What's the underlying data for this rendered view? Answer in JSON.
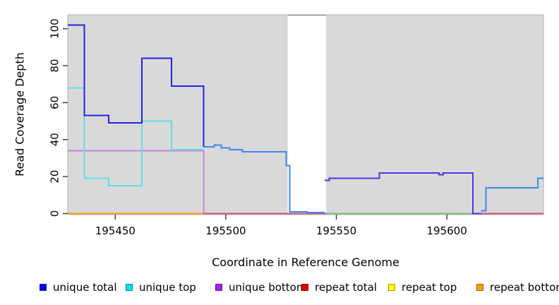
{
  "figure": {
    "background": "#ffffff",
    "plot_bg": "#d9d9d9",
    "tick_color": "#333333",
    "text_color": "#000000"
  },
  "chart_data": {
    "type": "line",
    "title": "",
    "xlabel": "Coordinate in Reference Genome",
    "ylabel": "Read Coverage Depth",
    "xlim": [
      195428.5,
      195643.7
    ],
    "ylim": [
      0,
      107.5
    ],
    "x_ticks": [
      195450,
      195500,
      195550,
      195600
    ],
    "y_ticks": [
      0,
      20,
      40,
      60,
      80,
      100
    ],
    "grid": false,
    "legend_position": "bottom",
    "plot_bg": "#d9d9d9",
    "plot_border": "#b3b3b3",
    "masked_region": {
      "x1": 195528.0,
      "x2": 195545.4,
      "color": "#ffffff",
      "top_line_color": "#8f8f8f"
    },
    "series": [
      {
        "name": "repeat-bottom-zero",
        "color": "#ff9d0a",
        "steps": [
          [
            195428.5,
            0
          ]
        ],
        "end": 195490
      },
      {
        "name": "zero-line-pink-left",
        "color": "#d5527a",
        "steps": [
          [
            195490,
            0
          ]
        ],
        "end": 195545.4
      },
      {
        "name": "zero-line-green",
        "color": "#7fbd81",
        "steps": [
          [
            195545.4,
            0
          ]
        ],
        "end": 195613
      },
      {
        "name": "zero-line-pink-right",
        "color": "#d5527a",
        "steps": [
          [
            195615.5,
            0
          ]
        ],
        "end": 195643.7
      },
      {
        "name": "unique-bottom",
        "color": "#c583dc",
        "steps": [
          [
            195428.5,
            34
          ]
        ],
        "end": 195490,
        "drop": 0
      },
      {
        "name": "unique-top",
        "color": "#62dde6",
        "steps": [
          [
            195428.5,
            68
          ],
          [
            195436,
            19
          ],
          [
            195447,
            15
          ],
          [
            195462,
            50
          ],
          [
            195475.5,
            34.5
          ]
        ],
        "end": 195490
      },
      {
        "name": "unique-total-left",
        "color": "#2323e8",
        "steps": [
          [
            195428.5,
            102
          ],
          [
            195436,
            53
          ],
          [
            195447,
            49
          ],
          [
            195462,
            84
          ],
          [
            195475.5,
            69
          ]
        ],
        "end": 195490,
        "drop": 36
      },
      {
        "name": "coverage-mid",
        "color": "#3d87f0",
        "steps": [
          [
            195490,
            36
          ],
          [
            195494.7,
            37
          ],
          [
            195497.9,
            35.5
          ],
          [
            195501.7,
            34.5
          ],
          [
            195507.5,
            33.5
          ],
          [
            195527.3,
            26
          ],
          [
            195528.9,
            1
          ],
          [
            195536.8,
            0.5
          ]
        ],
        "end": 195544.8
      },
      {
        "name": "coverage-right-slate",
        "color": "#5733e4",
        "steps": [
          [
            195544.8,
            18
          ],
          [
            195546.8,
            19
          ],
          [
            195569.4,
            22
          ],
          [
            195596.5,
            21
          ],
          [
            195598.4,
            22
          ],
          [
            195611.8,
            0
          ]
        ],
        "end": 195615.5
      },
      {
        "name": "coverage-far-right",
        "color": "#3d87f0",
        "steps": [
          [
            195615.5,
            1.5
          ],
          [
            195617.6,
            14
          ],
          [
            195641.2,
            19
          ]
        ],
        "end": 195643.7
      }
    ],
    "legend": [
      {
        "label": "unique total",
        "color": "#0000f0",
        "border": "#1a1aa0"
      },
      {
        "label": "unique top",
        "color": "#00e5e5",
        "border": "#00888f"
      },
      {
        "label": "unique bottom",
        "color": "#a021f0",
        "border": "#6a11a0"
      },
      {
        "label": "repeat total",
        "color": "#e60000",
        "border": "#8f0000"
      },
      {
        "label": "repeat top",
        "color": "#ffff00",
        "border": "#9a9a00"
      },
      {
        "label": "repeat bottom",
        "color": "#ff9d0a",
        "border": "#a66300"
      }
    ]
  }
}
